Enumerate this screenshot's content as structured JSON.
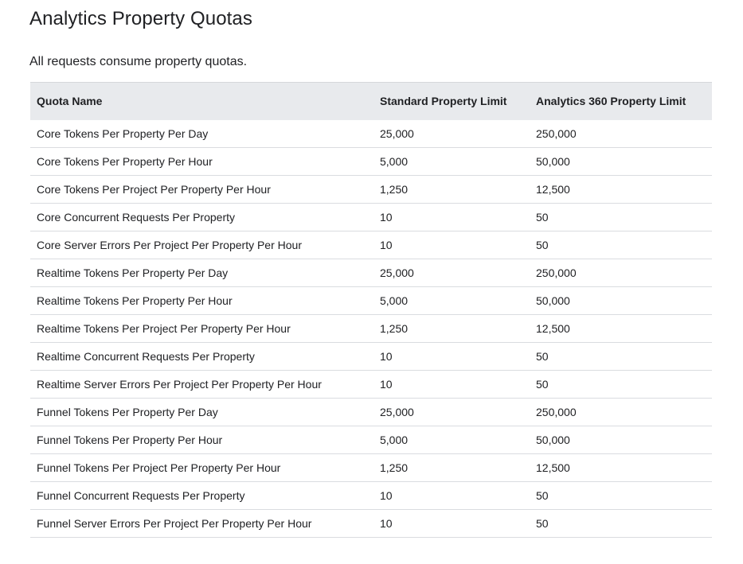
{
  "page": {
    "title": "Analytics Property Quotas",
    "intro": "All requests consume property quotas."
  },
  "colors": {
    "header_background": "#e8eaed",
    "row_border": "#dadce0",
    "text": "#202124",
    "page_background": "#ffffff"
  },
  "table": {
    "columns": {
      "name": "Quota Name",
      "standard": "Standard Property Limit",
      "analytics360": "Analytics 360 Property Limit"
    },
    "rows": [
      {
        "name": "Core Tokens Per Property Per Day",
        "standard": "25,000",
        "analytics360": "250,000"
      },
      {
        "name": "Core Tokens Per Property Per Hour",
        "standard": "5,000",
        "analytics360": "50,000"
      },
      {
        "name": "Core Tokens Per Project Per Property Per Hour",
        "standard": "1,250",
        "analytics360": "12,500"
      },
      {
        "name": "Core Concurrent Requests Per Property",
        "standard": "10",
        "analytics360": "50"
      },
      {
        "name": "Core Server Errors Per Project Per Property Per Hour",
        "standard": "10",
        "analytics360": "50"
      },
      {
        "name": "Realtime Tokens Per Property Per Day",
        "standard": "25,000",
        "analytics360": "250,000"
      },
      {
        "name": "Realtime Tokens Per Property Per Hour",
        "standard": "5,000",
        "analytics360": "50,000"
      },
      {
        "name": "Realtime Tokens Per Project Per Property Per Hour",
        "standard": "1,250",
        "analytics360": "12,500"
      },
      {
        "name": "Realtime Concurrent Requests Per Property",
        "standard": "10",
        "analytics360": "50"
      },
      {
        "name": "Realtime Server Errors Per Project Per Property Per Hour",
        "standard": "10",
        "analytics360": "50"
      },
      {
        "name": "Funnel Tokens Per Property Per Day",
        "standard": "25,000",
        "analytics360": "250,000"
      },
      {
        "name": "Funnel Tokens Per Property Per Hour",
        "standard": "5,000",
        "analytics360": "50,000"
      },
      {
        "name": "Funnel Tokens Per Project Per Property Per Hour",
        "standard": "1,250",
        "analytics360": "12,500"
      },
      {
        "name": "Funnel Concurrent Requests Per Property",
        "standard": "10",
        "analytics360": "50"
      },
      {
        "name": "Funnel Server Errors Per Project Per Property Per Hour",
        "standard": "10",
        "analytics360": "50"
      }
    ]
  }
}
